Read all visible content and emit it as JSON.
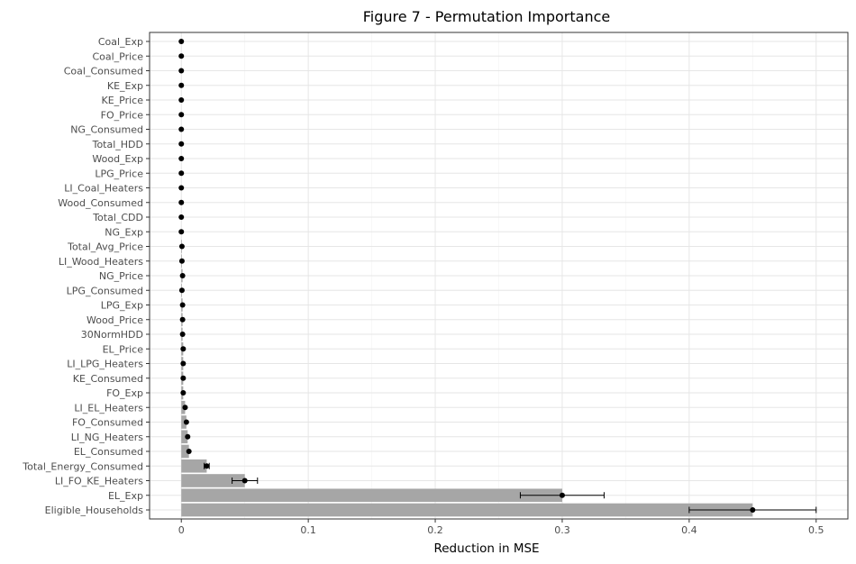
{
  "chart_data": {
    "type": "bar",
    "orientation": "horizontal",
    "title": "Figure 7 - Permutation Importance",
    "xlabel": "Reduction in MSE",
    "ylabel": "",
    "xlim": [
      -0.025,
      0.525
    ],
    "xticks": [
      0,
      0.1,
      0.2,
      0.3,
      0.4,
      0.5
    ],
    "xtick_labels": [
      "0",
      "0.1",
      "0.2",
      "0.3",
      "0.4",
      "0.5"
    ],
    "grid": true,
    "bar_color": "#a6a6a6",
    "point_color": "#000000",
    "categories": [
      "Coal_Exp",
      "Coal_Price",
      "Coal_Consumed",
      "KE_Exp",
      "KE_Price",
      "FO_Price",
      "NG_Consumed",
      "Total_HDD",
      "Wood_Exp",
      "LPG_Price",
      "LI_Coal_Heaters",
      "Wood_Consumed",
      "Total_CDD",
      "NG_Exp",
      "Total_Avg_Price",
      "LI_Wood_Heaters",
      "NG_Price",
      "LPG_Consumed",
      "LPG_Exp",
      "Wood_Price",
      "30NormHDD",
      "EL_Price",
      "LI_LPG_Heaters",
      "KE_Consumed",
      "FO_Exp",
      "LI_EL_Heaters",
      "FO_Consumed",
      "LI_NG_Heaters",
      "EL_Consumed",
      "Total_Energy_Consumed",
      "LI_FO_KE_Heaters",
      "EL_Exp",
      "Eligible_Households"
    ],
    "values": [
      0,
      0,
      0,
      0,
      0,
      0,
      0,
      0,
      0,
      0,
      0,
      0,
      0,
      0,
      0.0005,
      0.0005,
      0.001,
      0.0005,
      0.001,
      0.001,
      0.001,
      0.0015,
      0.0015,
      0.0015,
      0.0015,
      0.003,
      0.004,
      0.005,
      0.006,
      0.02,
      0.05,
      0.3,
      0.45
    ],
    "error": [
      0,
      0,
      0,
      0,
      0,
      0,
      0,
      0,
      0,
      0,
      0,
      0,
      0,
      0,
      0,
      0,
      0,
      0,
      0,
      0,
      0,
      0,
      0,
      0,
      0,
      0,
      0,
      0,
      0,
      0.002,
      0.01,
      0.033,
      0.05
    ]
  }
}
